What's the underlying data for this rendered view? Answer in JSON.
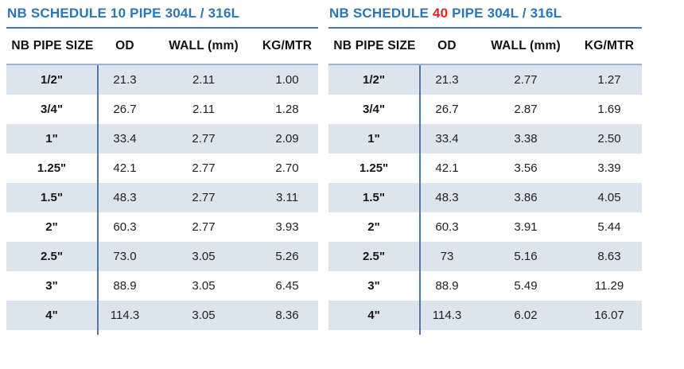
{
  "colors": {
    "title_blue": "#2e75b6",
    "schedule_number_red": "#d92b22",
    "row_shade": "#dce4ee",
    "divider_blue": "#4f7aa8",
    "body_top_border": "#9fb3c8",
    "text": "#202020"
  },
  "tables": [
    {
      "title": {
        "prefix": "NB SCHEDULE ",
        "number": "10",
        "suffix": " PIPE 304L / 316L",
        "number_style": "color:#2e75b6"
      },
      "headers": [
        "NB PIPE SIZE",
        "OD",
        "WALL (mm)",
        "KG/MTR"
      ],
      "rows": [
        [
          "1/2\"",
          "21.3",
          "2.11",
          "1.00"
        ],
        [
          "3/4\"",
          "26.7",
          "2.11",
          "1.28"
        ],
        [
          "1\"",
          "33.4",
          "2.77",
          "2.09"
        ],
        [
          "1.25\"",
          "42.1",
          "2.77",
          "2.70"
        ],
        [
          "1.5\"",
          "48.3",
          "2.77",
          "3.11"
        ],
        [
          "2\"",
          "60.3",
          "2.77",
          "3.93"
        ],
        [
          "2.5\"",
          "73.0",
          "3.05",
          "5.26"
        ],
        [
          "3\"",
          "88.9",
          "3.05",
          "6.45"
        ],
        [
          "4\"",
          "114.3",
          "3.05",
          "8.36"
        ]
      ]
    },
    {
      "title": {
        "prefix": "NB SCHEDULE ",
        "number": "40",
        "suffix": " PIPE 304L / 316L",
        "number_style": "color:#d92b22"
      },
      "headers": [
        "NB PIPE SIZE",
        "OD",
        "WALL (mm)",
        "KG/MTR"
      ],
      "rows": [
        [
          "1/2\"",
          "21.3",
          "2.77",
          "1.27"
        ],
        [
          "3/4\"",
          "26.7",
          "2.87",
          "1.69"
        ],
        [
          "1\"",
          "33.4",
          "3.38",
          "2.50"
        ],
        [
          "1.25\"",
          "42.1",
          "3.56",
          "3.39"
        ],
        [
          "1.5\"",
          "48.3",
          "3.86",
          "4.05"
        ],
        [
          "2\"",
          "60.3",
          "3.91",
          "5.44"
        ],
        [
          "2.5\"",
          "73",
          "5.16",
          "8.63"
        ],
        [
          "3\"",
          "88.9",
          "5.49",
          "11.29"
        ],
        [
          "4\"",
          "114.3",
          "6.02",
          "16.07"
        ]
      ]
    }
  ]
}
